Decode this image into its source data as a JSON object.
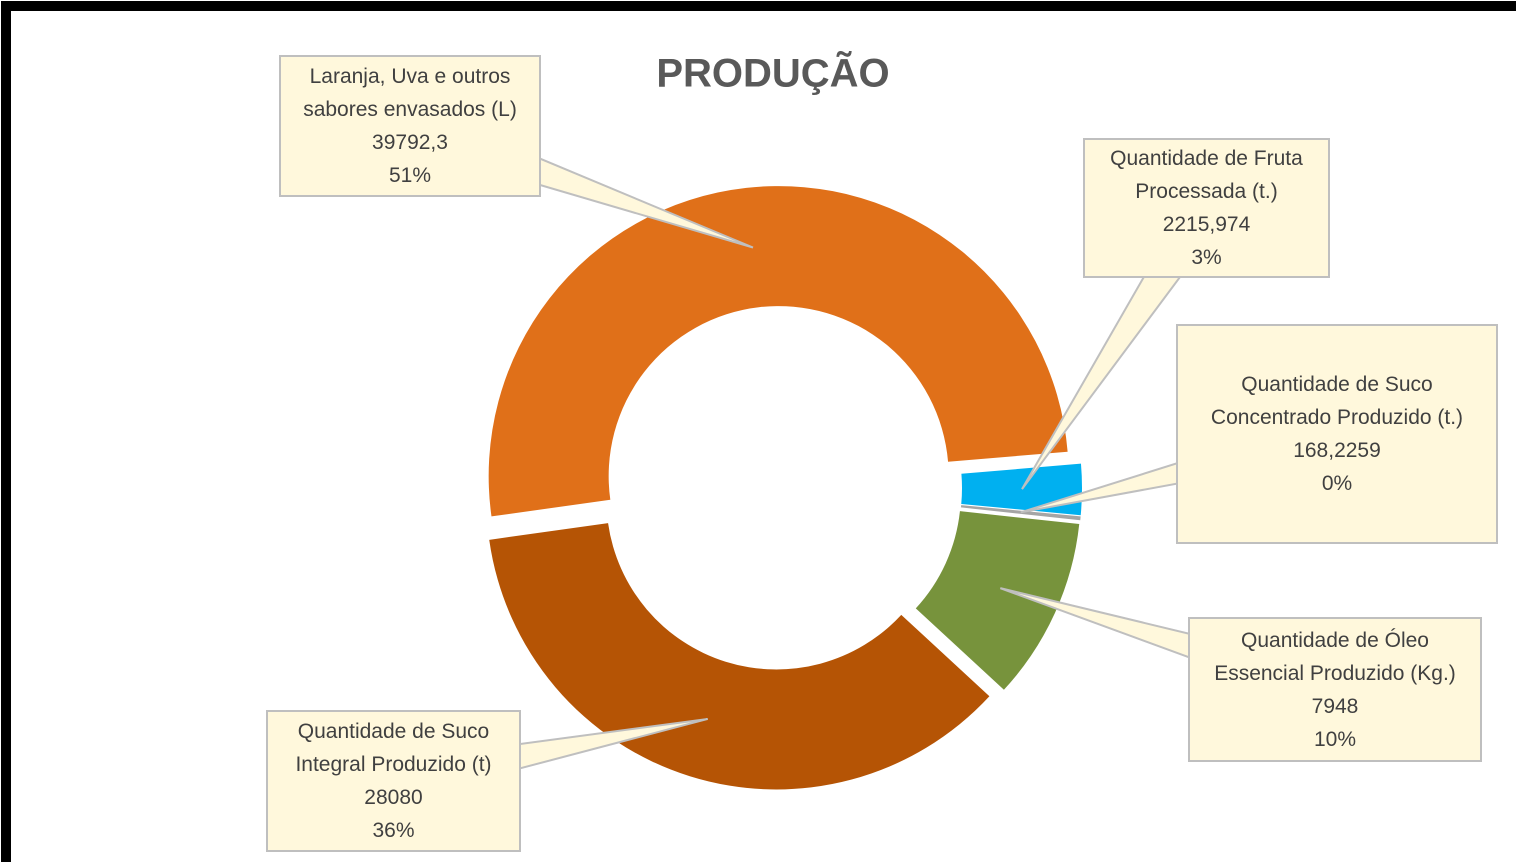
{
  "chart_data": {
    "type": "donut",
    "title": "PRODUÇÃO",
    "categories": [
      "Laranja, Uva e outros sabores envasados (L)",
      "Quantidade de Fruta Processada (t.)",
      "Quantidade de Suco Concentrado Produzido (t.)",
      "Quantidade de Óleo Essencial Produzido (Kg.)",
      "Quantidade de Suco Integral Produzido (t)"
    ],
    "values": [
      39792.3,
      2215.974,
      168.2259,
      7948,
      28080
    ],
    "value_labels": [
      "39792,3",
      "2215,974",
      "168,2259",
      "7948",
      "28080"
    ],
    "percent_labels": [
      "51%",
      "3%",
      "0%",
      "10%",
      "36%"
    ],
    "colors": [
      "#e07019",
      "#00b0f0",
      "#a5a5a5",
      "#77933c",
      "#b55405"
    ]
  }
}
